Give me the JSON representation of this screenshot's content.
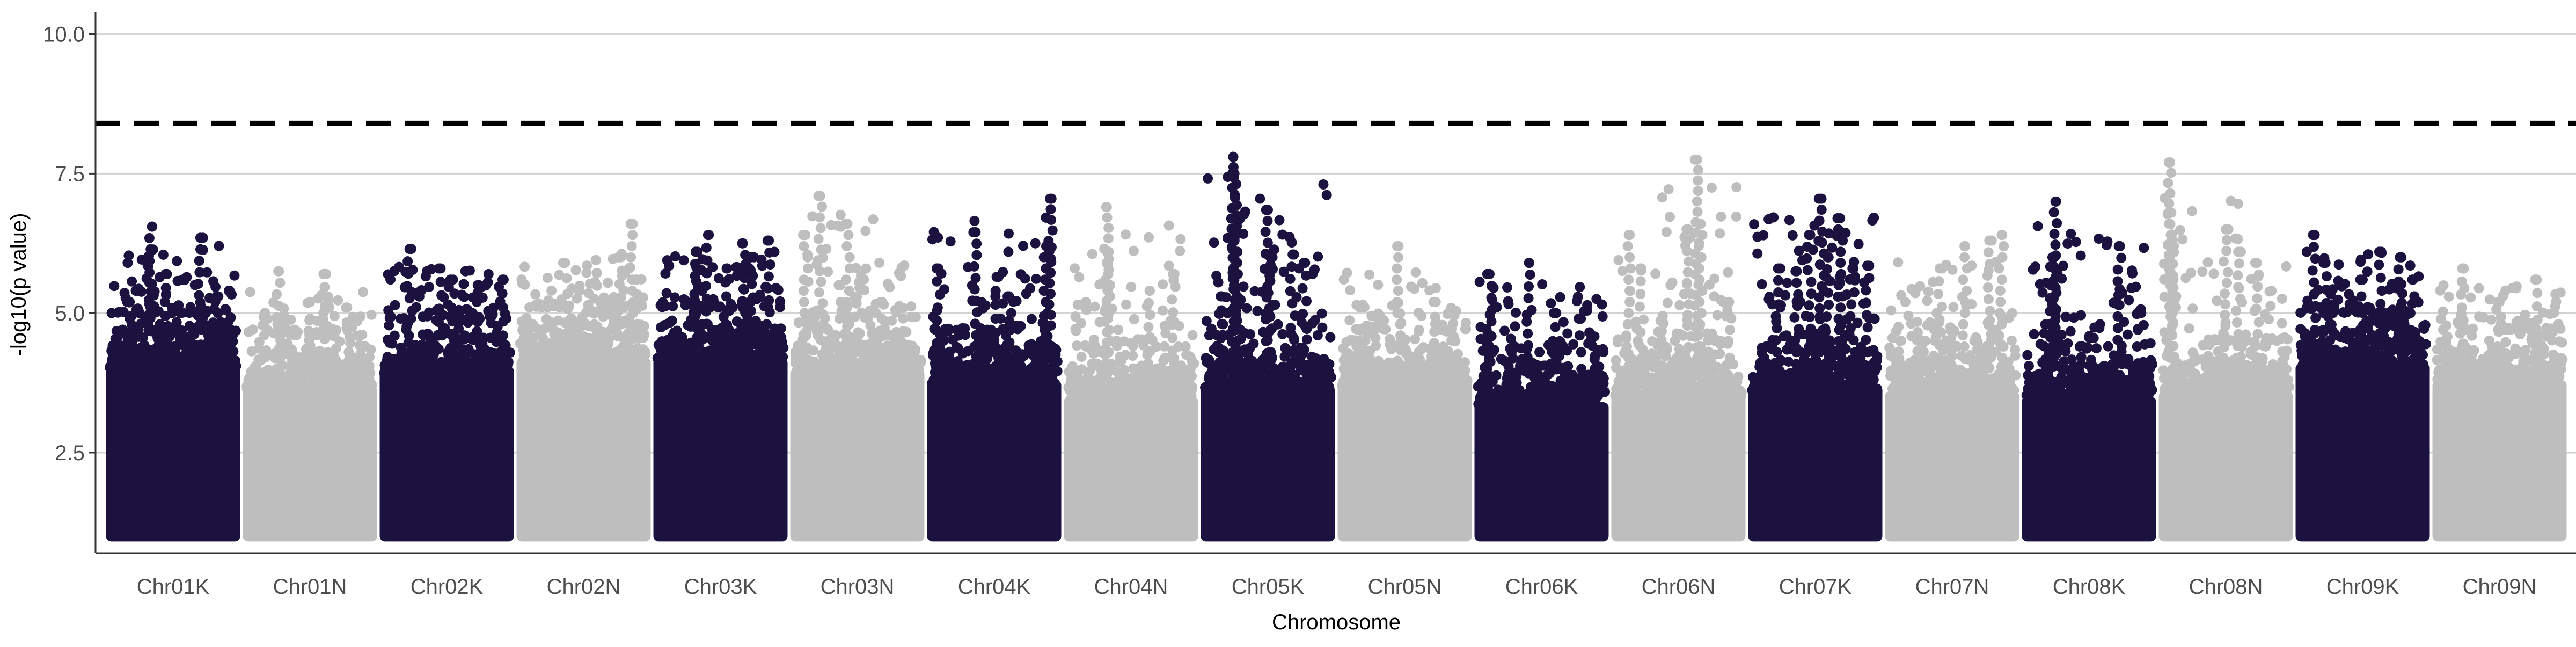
{
  "chart_data": {
    "type": "scatter",
    "subtype": "manhattan",
    "title": "",
    "xlabel": "Chromosome",
    "ylabel": "-log10(p value)",
    "ylim": [
      0.7,
      10.4
    ],
    "yticks": [
      2.5,
      5.0,
      7.5,
      10.0
    ],
    "ytick_labels": [
      "2.5",
      "5.0",
      "7.5",
      "10.0"
    ],
    "grid": "horizontal major lines only",
    "legend": "none",
    "threshold_line": {
      "y": 8.4,
      "style": "dashed",
      "color": "#000000"
    },
    "colors": {
      "K": "#1c1240",
      "N": "#bebebe"
    },
    "categories": [
      "Chr01K",
      "Chr01N",
      "Chr02K",
      "Chr02N",
      "Chr03K",
      "Chr03N",
      "Chr04K",
      "Chr04N",
      "Chr05K",
      "Chr05N",
      "Chr06K",
      "Chr06N",
      "Chr07K",
      "Chr07N",
      "Chr08K",
      "Chr08N",
      "Chr09K",
      "Chr09N"
    ],
    "series": [
      {
        "chromosome": "Chr01K",
        "color": "#1c1240",
        "floor": 1.0,
        "ceiling": 4.9,
        "max": 6.55,
        "peaks": [
          [
            0.15,
            5.2
          ],
          [
            0.22,
            5.4
          ],
          [
            0.3,
            5.85
          ],
          [
            0.33,
            6.55
          ],
          [
            0.45,
            5.7
          ],
          [
            0.72,
            6.35
          ],
          [
            0.85,
            5.3
          ],
          [
            0.95,
            5.4
          ]
        ]
      },
      {
        "chromosome": "Chr01N",
        "color": "#bebebe",
        "floor": 1.0,
        "ceiling": 4.5,
        "max": 5.75,
        "peaks": [
          [
            0.25,
            5.75
          ],
          [
            0.5,
            5.2
          ],
          [
            0.63,
            5.7
          ],
          [
            0.8,
            5.1
          ]
        ]
      },
      {
        "chromosome": "Chr02K",
        "color": "#1c1240",
        "floor": 1.0,
        "ceiling": 4.8,
        "max": 6.15,
        "peaks": [
          [
            0.2,
            6.15
          ],
          [
            0.45,
            5.8
          ],
          [
            0.55,
            5.6
          ],
          [
            0.65,
            5.75
          ],
          [
            0.75,
            5.5
          ],
          [
            0.95,
            5.6
          ]
        ]
      },
      {
        "chromosome": "Chr02N",
        "color": "#bebebe",
        "floor": 1.0,
        "ceiling": 5.0,
        "max": 6.6,
        "peaks": [
          [
            0.35,
            5.9
          ],
          [
            0.6,
            5.95
          ],
          [
            0.8,
            6.0
          ],
          [
            0.88,
            6.6
          ],
          [
            0.93,
            5.6
          ]
        ]
      },
      {
        "chromosome": "Chr03K",
        "color": "#1c1240",
        "floor": 1.0,
        "ceiling": 5.0,
        "max": 6.4,
        "peaks": [
          [
            0.3,
            6.1
          ],
          [
            0.4,
            6.4
          ],
          [
            0.55,
            5.8
          ],
          [
            0.68,
            6.25
          ],
          [
            0.75,
            6.0
          ],
          [
            0.88,
            6.3
          ]
        ]
      },
      {
        "chromosome": "Chr03N",
        "color": "#bebebe",
        "floor": 1.0,
        "ceiling": 4.8,
        "max": 7.1,
        "peaks": [
          [
            0.08,
            6.4
          ],
          [
            0.2,
            7.1
          ],
          [
            0.35,
            5.5
          ],
          [
            0.42,
            6.6
          ],
          [
            0.7,
            5.2
          ]
        ]
      },
      {
        "chromosome": "Chr04K",
        "color": "#1c1240",
        "floor": 1.0,
        "ceiling": 4.6,
        "max": 7.05,
        "peaks": [
          [
            0.05,
            5.8
          ],
          [
            0.35,
            6.45
          ],
          [
            0.52,
            5.65
          ],
          [
            0.62,
            5.3
          ],
          [
            0.92,
            6.2
          ],
          [
            0.95,
            7.05
          ]
        ]
      },
      {
        "chromosome": "Chr04N",
        "color": "#bebebe",
        "floor": 1.0,
        "ceiling": 4.3,
        "max": 6.9,
        "peaks": [
          [
            0.3,
            6.9
          ],
          [
            0.32,
            6.1
          ],
          [
            0.65,
            5.4
          ],
          [
            0.85,
            5.7
          ]
        ]
      },
      {
        "chromosome": "Chr05K",
        "color": "#1c1240",
        "floor": 1.0,
        "ceiling": 4.5,
        "max": 7.8,
        "peaks": [
          [
            0.12,
            5.3
          ],
          [
            0.22,
            7.8
          ],
          [
            0.23,
            7.5
          ],
          [
            0.24,
            6.5
          ],
          [
            0.5,
            6.85
          ],
          [
            0.52,
            6.0
          ],
          [
            0.7,
            6.05
          ],
          [
            0.8,
            5.9
          ]
        ]
      },
      {
        "chromosome": "Chr05N",
        "color": "#bebebe",
        "floor": 1.0,
        "ceiling": 4.6,
        "max": 6.2,
        "peaks": [
          [
            0.45,
            6.2
          ],
          [
            0.75,
            5.2
          ]
        ]
      },
      {
        "chromosome": "Chr06K",
        "color": "#1c1240",
        "floor": 1.0,
        "ceiling": 4.2,
        "max": 5.9,
        "peaks": [
          [
            0.08,
            5.7
          ],
          [
            0.4,
            5.9
          ],
          [
            0.6,
            5.0
          ],
          [
            0.8,
            4.9
          ]
        ]
      },
      {
        "chromosome": "Chr06N",
        "color": "#bebebe",
        "floor": 1.0,
        "ceiling": 4.4,
        "max": 7.75,
        "peaks": [
          [
            0.1,
            6.4
          ],
          [
            0.2,
            5.8
          ],
          [
            0.58,
            6.5
          ],
          [
            0.65,
            7.75
          ],
          [
            0.68,
            6.6
          ],
          [
            0.9,
            5.2
          ]
        ]
      },
      {
        "chromosome": "Chr07K",
        "color": "#1c1240",
        "floor": 1.0,
        "ceiling": 4.5,
        "max": 7.05,
        "peaks": [
          [
            0.2,
            5.8
          ],
          [
            0.35,
            5.75
          ],
          [
            0.45,
            6.4
          ],
          [
            0.55,
            7.05
          ],
          [
            0.6,
            6.0
          ],
          [
            0.7,
            6.7
          ],
          [
            0.8,
            5.8
          ],
          [
            0.92,
            5.85
          ]
        ]
      },
      {
        "chromosome": "Chr07N",
        "color": "#bebebe",
        "floor": 1.0,
        "ceiling": 4.4,
        "max": 6.4,
        "peaks": [
          [
            0.4,
            5.8
          ],
          [
            0.6,
            6.2
          ],
          [
            0.8,
            6.3
          ],
          [
            0.9,
            6.4
          ]
        ]
      },
      {
        "chromosome": "Chr08K",
        "color": "#1c1240",
        "floor": 1.0,
        "ceiling": 4.3,
        "max": 7.0,
        "peaks": [
          [
            0.2,
            5.5
          ],
          [
            0.22,
            6.0
          ],
          [
            0.23,
            7.0
          ],
          [
            0.75,
            6.2
          ],
          [
            0.9,
            5.0
          ]
        ]
      },
      {
        "chromosome": "Chr08N",
        "color": "#bebebe",
        "floor": 1.0,
        "ceiling": 4.4,
        "max": 7.7,
        "peaks": [
          [
            0.05,
            7.7
          ],
          [
            0.06,
            6.8
          ],
          [
            0.07,
            6.3
          ],
          [
            0.5,
            6.5
          ],
          [
            0.6,
            6.1
          ],
          [
            0.75,
            5.9
          ]
        ]
      },
      {
        "chromosome": "Chr09K",
        "color": "#1c1240",
        "floor": 1.0,
        "ceiling": 4.9,
        "max": 6.4,
        "peaks": [
          [
            0.1,
            6.4
          ],
          [
            0.2,
            5.9
          ],
          [
            0.5,
            5.6
          ],
          [
            0.65,
            6.1
          ],
          [
            0.8,
            6.0
          ],
          [
            0.9,
            5.6
          ]
        ]
      },
      {
        "chromosome": "Chr09N",
        "color": "#bebebe",
        "floor": 1.0,
        "ceiling": 4.6,
        "max": 5.8,
        "peaks": [
          [
            0.2,
            5.8
          ],
          [
            0.5,
            5.2
          ],
          [
            0.8,
            5.6
          ]
        ]
      }
    ]
  }
}
